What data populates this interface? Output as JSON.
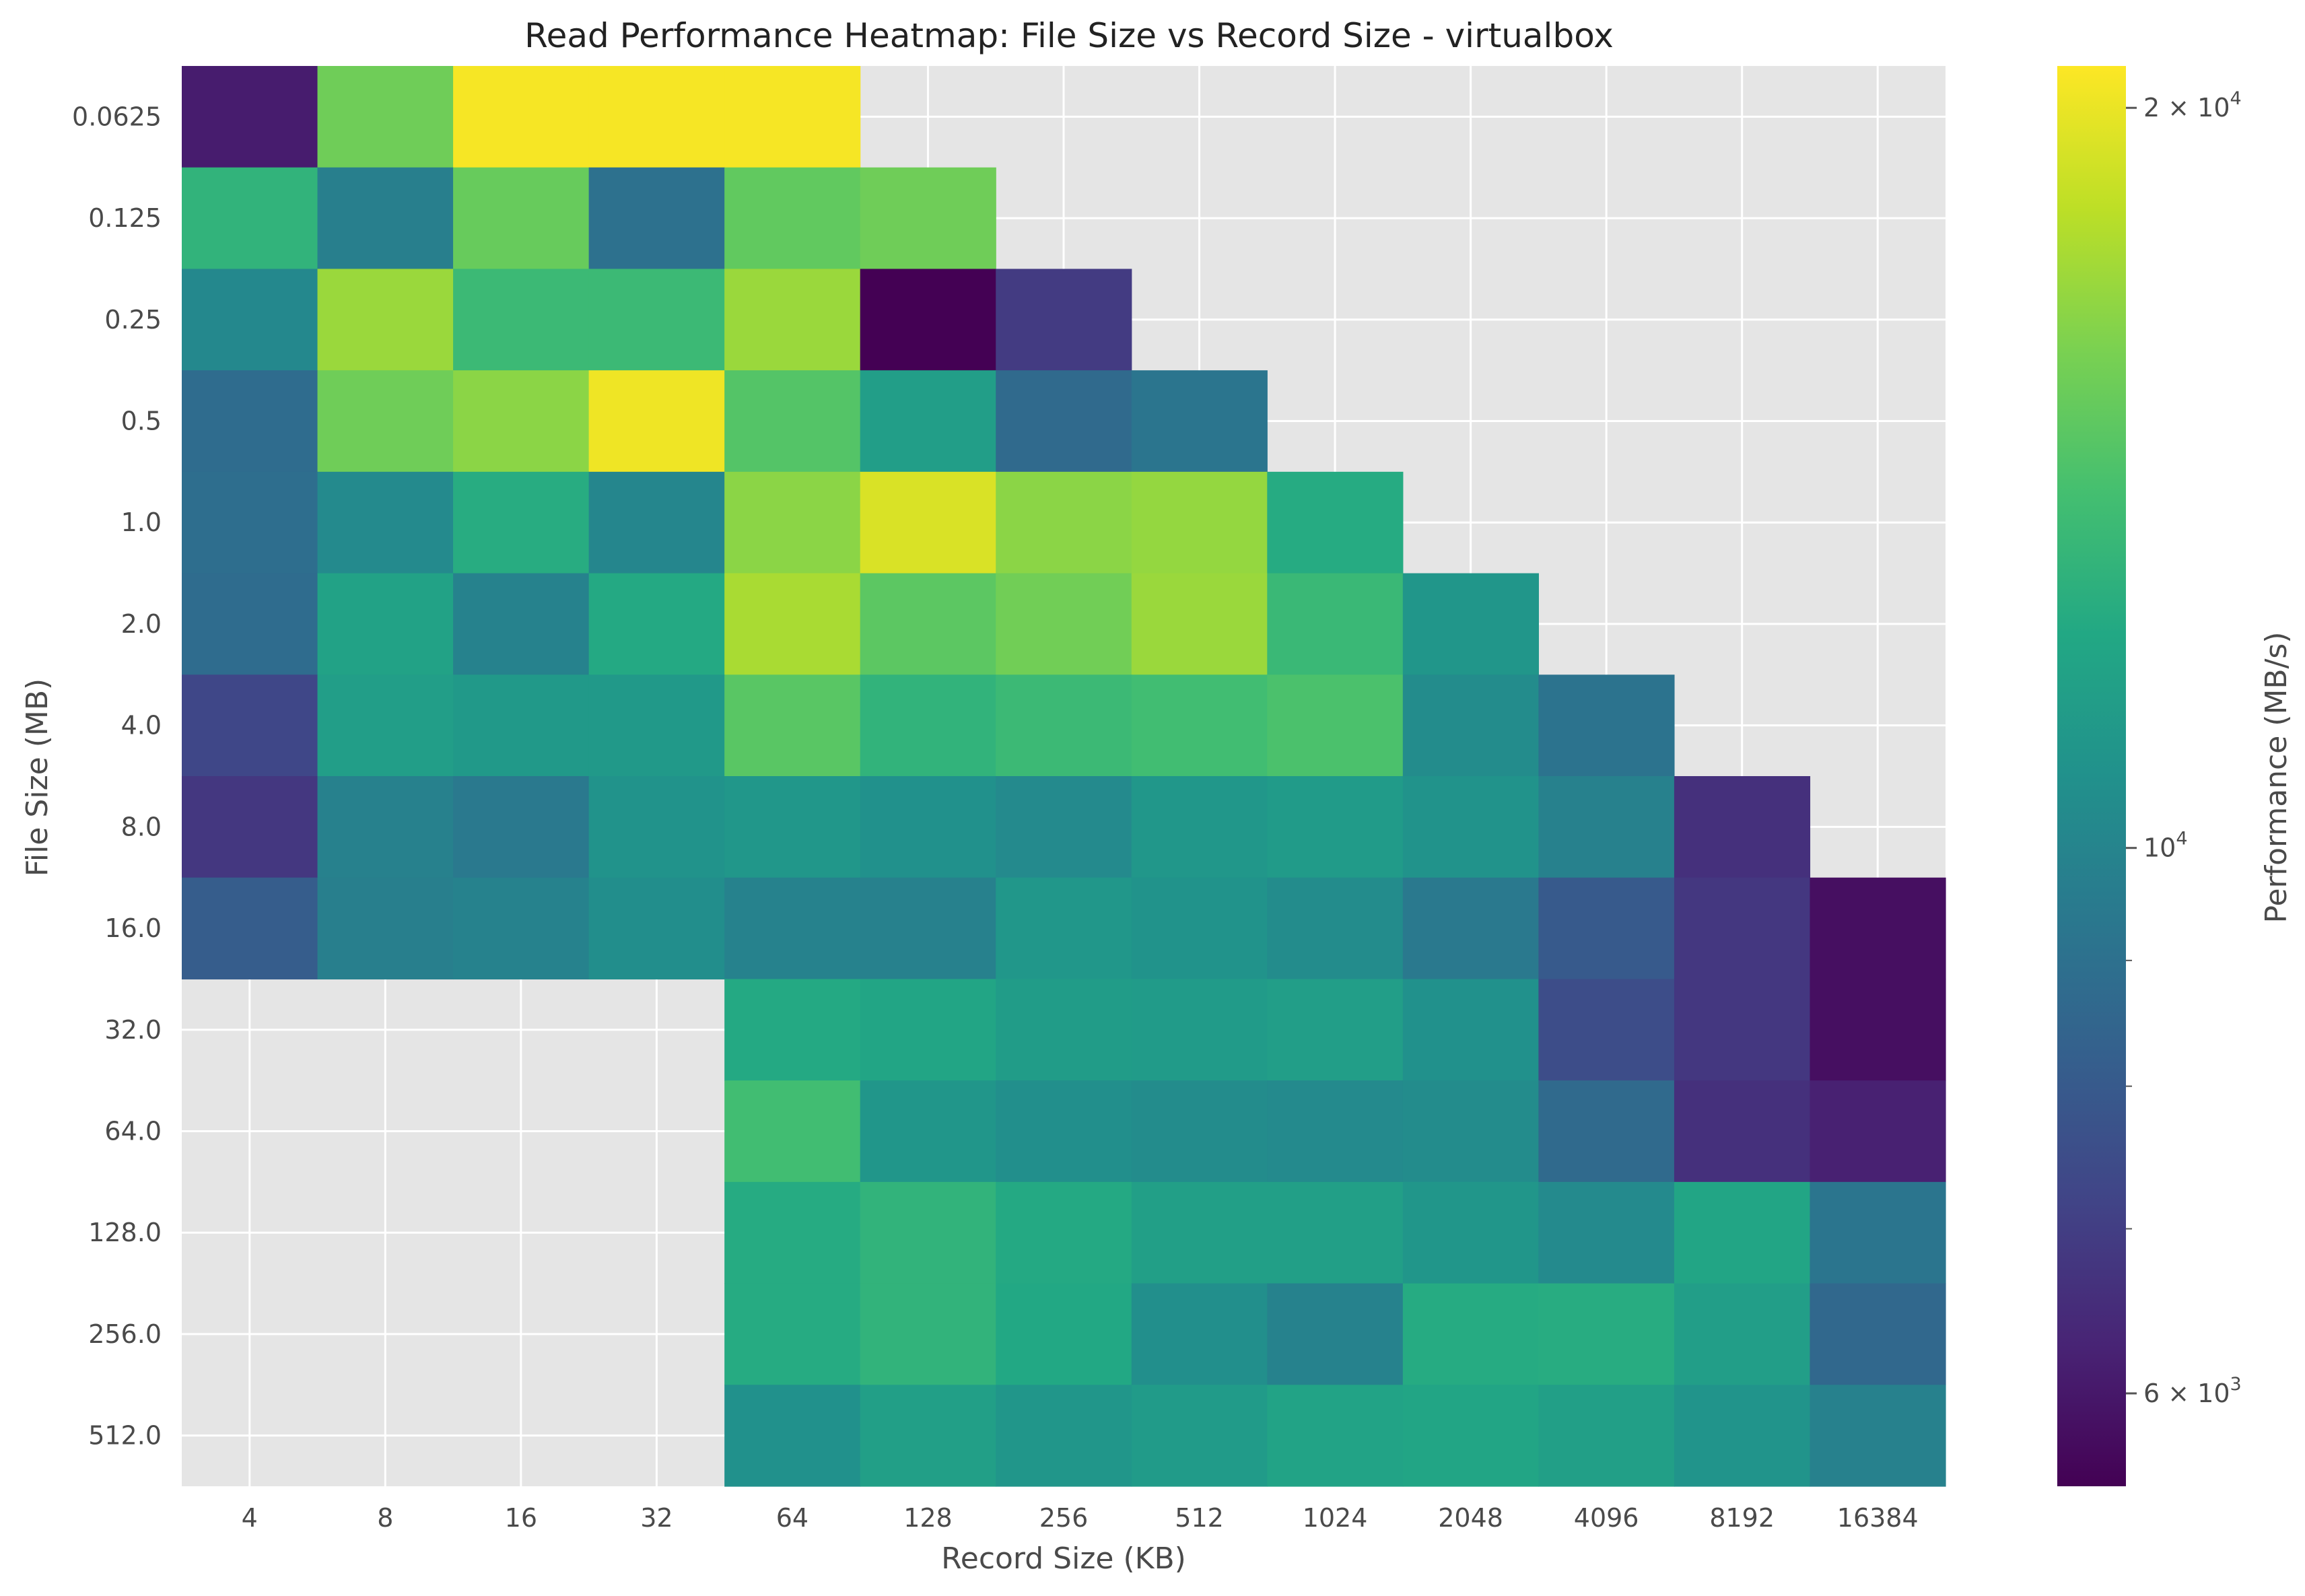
{
  "chart_data": {
    "type": "heatmap",
    "title": "Read Performance Heatmap: File Size vs Record Size - virtualbox",
    "xlabel": "Record Size (KB)",
    "ylabel": "File Size (MB)",
    "x_categories": [
      "4",
      "8",
      "16",
      "32",
      "64",
      "128",
      "256",
      "512",
      "1024",
      "2048",
      "4096",
      "8192",
      "16384"
    ],
    "y_categories": [
      "0.0625",
      "0.125",
      "0.25",
      "0.5",
      "1.0",
      "2.0",
      "4.0",
      "8.0",
      "16.0",
      "32.0",
      "64.0",
      "128.0",
      "256.0",
      "512.0"
    ],
    "values": [
      [
        6100,
        15500,
        20500,
        20500,
        20500,
        null,
        null,
        null,
        null,
        null,
        null,
        null,
        null
      ],
      [
        13000,
        9700,
        15200,
        9000,
        15000,
        15500,
        null,
        null,
        null,
        null,
        null,
        null,
        null
      ],
      [
        10200,
        17000,
        13500,
        13500,
        17000,
        5500,
        6900,
        null,
        null,
        null,
        null,
        null,
        null
      ],
      [
        8800,
        15500,
        16500,
        20200,
        14500,
        11500,
        8700,
        9200,
        null,
        null,
        null,
        null,
        null
      ],
      [
        8900,
        10300,
        12500,
        10100,
        16500,
        19300,
        16500,
        16800,
        12400,
        null,
        null,
        null,
        null
      ],
      [
        8800,
        11800,
        9900,
        12300,
        17500,
        14800,
        15600,
        17000,
        13400,
        11000,
        null,
        null,
        null
      ],
      [
        7300,
        11500,
        11200,
        11200,
        14700,
        13000,
        13500,
        13800,
        14200,
        10400,
        9100,
        null,
        null
      ],
      [
        6800,
        9800,
        9400,
        10800,
        11100,
        10700,
        10300,
        11100,
        11300,
        10800,
        9800,
        6600,
        null
      ],
      [
        8100,
        9700,
        9900,
        10500,
        9900,
        9800,
        11100,
        10800,
        10400,
        9400,
        8000,
        6800,
        5800
      ],
      [
        null,
        null,
        null,
        null,
        12300,
        12000,
        11400,
        11300,
        11500,
        10700,
        7500,
        6800,
        5800
      ],
      [
        null,
        null,
        null,
        null,
        13800,
        11000,
        10600,
        10400,
        10300,
        10400,
        8700,
        6600,
        6200
      ],
      [
        null,
        null,
        null,
        null,
        12400,
        13000,
        12300,
        11600,
        11600,
        11000,
        10300,
        12000,
        9200
      ],
      [
        null,
        null,
        null,
        null,
        12400,
        13000,
        12200,
        10600,
        9900,
        12400,
        12500,
        11500,
        8600
      ],
      [
        null,
        null,
        null,
        null,
        10700,
        11600,
        11000,
        11300,
        11900,
        12000,
        11600,
        10900,
        9800
      ]
    ],
    "colormap": "viridis",
    "color_scale": "log",
    "color_range": [
      5500,
      20800
    ],
    "colorbar": {
      "label": "Performance (MB/s)",
      "ticks": [
        {
          "value": 20000,
          "label_base": "2 × 10",
          "label_exp": "4"
        },
        {
          "value": 10000,
          "label_base": "10",
          "label_exp": "4"
        },
        {
          "value": 6000,
          "label_base": "6 × 10",
          "label_exp": "3"
        }
      ],
      "minor_ticks": [
        7000,
        8000,
        9000
      ]
    },
    "missing_color": "#e5e5e5",
    "grid": true,
    "style": "ggplot"
  }
}
